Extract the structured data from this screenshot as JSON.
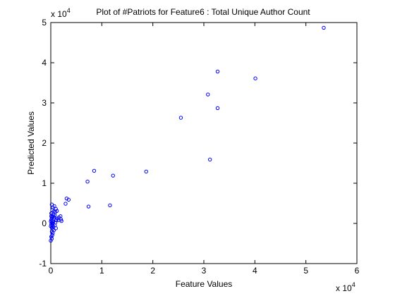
{
  "chart_data": {
    "type": "scatter",
    "title": "Plot of #Patriots for Feature6 : Total Unique Author Count",
    "xlabel": "Feature Values",
    "ylabel": "Predicted Values",
    "x_multiplier": "x 10",
    "x_multiplier_exp": "4",
    "y_multiplier": "x 10",
    "y_multiplier_exp": "4",
    "xlim": [
      0,
      6
    ],
    "ylim": [
      -1,
      5
    ],
    "xticks": [
      "0",
      "1",
      "2",
      "3",
      "4",
      "5",
      "6"
    ],
    "yticks": [
      "-1",
      "0",
      "1",
      "2",
      "3",
      "4",
      "5"
    ],
    "marker_color": "#0000ff",
    "grid": false,
    "legend": "none",
    "points": [
      [
        5.35,
        4.87
      ],
      [
        4.01,
        3.61
      ],
      [
        3.27,
        3.78
      ],
      [
        3.27,
        2.87
      ],
      [
        3.08,
        3.21
      ],
      [
        2.55,
        2.63
      ],
      [
        3.12,
        1.59
      ],
      [
        1.87,
        1.29
      ],
      [
        1.22,
        1.19
      ],
      [
        0.85,
        1.31
      ],
      [
        0.72,
        1.04
      ],
      [
        0.74,
        0.42
      ],
      [
        1.16,
        0.45
      ],
      [
        0.35,
        0.59
      ],
      [
        0.31,
        0.62
      ],
      [
        0.29,
        0.49
      ],
      [
        0.19,
        0.18
      ],
      [
        0.2,
        0.1
      ],
      [
        0.21,
        0.06
      ],
      [
        0.16,
        0.15
      ],
      [
        0.15,
        0.08
      ],
      [
        0.13,
        0.12
      ],
      [
        0.02,
        0.47
      ],
      [
        0.04,
        0.4
      ],
      [
        0.07,
        0.43
      ],
      [
        0.1,
        0.36
      ],
      [
        0.09,
        0.28
      ],
      [
        0.12,
        0.31
      ],
      [
        0.06,
        0.3
      ],
      [
        0.03,
        0.33
      ],
      [
        0.01,
        0.25
      ],
      [
        0.05,
        0.22
      ],
      [
        0.08,
        0.2
      ],
      [
        0.04,
        0.17
      ],
      [
        0.02,
        0.14
      ],
      [
        0.06,
        0.12
      ],
      [
        0.01,
        0.09
      ],
      [
        0.03,
        0.06
      ],
      [
        0.05,
        0.04
      ],
      [
        0.02,
        0.02
      ],
      [
        0.04,
        0.0
      ],
      [
        0.01,
        -0.02
      ],
      [
        0.03,
        -0.05
      ],
      [
        0.05,
        -0.08
      ],
      [
        0.02,
        -0.1
      ],
      [
        0.04,
        -0.14
      ],
      [
        0.06,
        -0.17
      ],
      [
        0.02,
        -0.2
      ],
      [
        0.04,
        -0.24
      ],
      [
        0.03,
        -0.29
      ],
      [
        0.01,
        -0.33
      ],
      [
        0.02,
        -0.38
      ],
      [
        0.0,
        -0.43
      ],
      [
        0.08,
        -0.05
      ],
      [
        0.1,
        -0.12
      ],
      [
        0.09,
        0.02
      ],
      [
        0.11,
        0.08
      ],
      [
        0.07,
        0.15
      ],
      [
        0.0,
        0.05
      ],
      [
        0.0,
        -0.07
      ],
      [
        0.01,
        0.18
      ]
    ]
  }
}
